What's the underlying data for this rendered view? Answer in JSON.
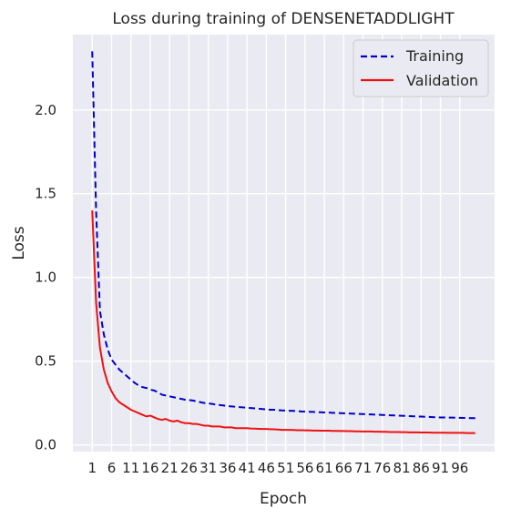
{
  "chart_data": {
    "type": "line",
    "title": "Loss during training of DENSENETADDLIGHT",
    "xlabel": "Epoch",
    "ylabel": "Loss",
    "xlim": [
      -4,
      105
    ],
    "ylim": [
      -0.04,
      2.45
    ],
    "grid": true,
    "legend_position": "top-right",
    "x_ticks": [
      1,
      6,
      11,
      16,
      21,
      26,
      31,
      36,
      41,
      46,
      51,
      56,
      61,
      66,
      71,
      76,
      81,
      86,
      91,
      96
    ],
    "x_tick_labels": [
      "1",
      "6",
      "11",
      "16",
      "21",
      "26",
      "31",
      "36",
      "41",
      "46",
      "51",
      "56",
      "61",
      "66",
      "71",
      "76",
      "81",
      "86",
      "91",
      "96"
    ],
    "y_ticks": [
      0.0,
      0.5,
      1.0,
      1.5,
      2.0
    ],
    "y_tick_labels": [
      "0.0",
      "0.5",
      "1.0",
      "1.5",
      "2.0"
    ],
    "series": [
      {
        "name": "Training",
        "color": "#0000cc",
        "style": "dashed",
        "x": [
          1,
          2,
          3,
          4,
          5,
          6,
          7,
          8,
          9,
          10,
          11,
          12,
          13,
          14,
          15,
          16,
          17,
          18,
          19,
          20,
          21,
          22,
          23,
          24,
          25,
          26,
          27,
          28,
          29,
          30,
          31,
          32,
          33,
          34,
          35,
          36,
          37,
          38,
          39,
          40,
          41,
          42,
          43,
          44,
          45,
          46,
          47,
          48,
          49,
          50,
          51,
          52,
          53,
          54,
          55,
          56,
          57,
          58,
          59,
          60,
          61,
          62,
          63,
          64,
          65,
          66,
          67,
          68,
          69,
          70,
          71,
          72,
          73,
          74,
          75,
          76,
          77,
          78,
          79,
          80,
          81,
          82,
          83,
          84,
          85,
          86,
          87,
          88,
          89,
          90,
          91,
          92,
          93,
          94,
          95,
          96,
          97,
          98,
          99,
          100
        ],
        "values": [
          2.35,
          1.4,
          0.8,
          0.66,
          0.57,
          0.51,
          0.48,
          0.45,
          0.43,
          0.41,
          0.39,
          0.37,
          0.355,
          0.345,
          0.34,
          0.33,
          0.325,
          0.315,
          0.3,
          0.295,
          0.29,
          0.285,
          0.28,
          0.275,
          0.27,
          0.268,
          0.265,
          0.26,
          0.255,
          0.25,
          0.248,
          0.245,
          0.24,
          0.238,
          0.235,
          0.232,
          0.23,
          0.228,
          0.226,
          0.224,
          0.222,
          0.22,
          0.218,
          0.216,
          0.214,
          0.212,
          0.21,
          0.21,
          0.208,
          0.206,
          0.205,
          0.204,
          0.203,
          0.202,
          0.2,
          0.199,
          0.198,
          0.197,
          0.196,
          0.195,
          0.194,
          0.193,
          0.192,
          0.191,
          0.19,
          0.189,
          0.188,
          0.187,
          0.186,
          0.185,
          0.184,
          0.183,
          0.182,
          0.181,
          0.18,
          0.179,
          0.178,
          0.177,
          0.176,
          0.175,
          0.174,
          0.173,
          0.172,
          0.171,
          0.17,
          0.169,
          0.168,
          0.167,
          0.166,
          0.165,
          0.164,
          0.164,
          0.163,
          0.163,
          0.162,
          0.162,
          0.161,
          0.161,
          0.16,
          0.16
        ]
      },
      {
        "name": "Validation",
        "color": "#ee1111",
        "style": "solid",
        "x": [
          1,
          2,
          3,
          4,
          5,
          6,
          7,
          8,
          9,
          10,
          11,
          12,
          13,
          14,
          15,
          16,
          17,
          18,
          19,
          20,
          21,
          22,
          23,
          24,
          25,
          26,
          27,
          28,
          29,
          30,
          31,
          32,
          33,
          34,
          35,
          36,
          37,
          38,
          39,
          40,
          41,
          42,
          43,
          44,
          45,
          46,
          47,
          48,
          49,
          50,
          51,
          52,
          53,
          54,
          55,
          56,
          57,
          58,
          59,
          60,
          61,
          62,
          63,
          64,
          65,
          66,
          67,
          68,
          69,
          70,
          71,
          72,
          73,
          74,
          75,
          76,
          77,
          78,
          79,
          80,
          81,
          82,
          83,
          84,
          85,
          86,
          87,
          88,
          89,
          90,
          91,
          92,
          93,
          94,
          95,
          96,
          97,
          98,
          99,
          100
        ],
        "values": [
          1.4,
          0.85,
          0.58,
          0.45,
          0.37,
          0.32,
          0.28,
          0.255,
          0.24,
          0.225,
          0.21,
          0.2,
          0.19,
          0.18,
          0.17,
          0.175,
          0.165,
          0.155,
          0.15,
          0.155,
          0.145,
          0.14,
          0.145,
          0.135,
          0.13,
          0.13,
          0.125,
          0.125,
          0.12,
          0.115,
          0.115,
          0.11,
          0.11,
          0.11,
          0.105,
          0.105,
          0.105,
          0.1,
          0.1,
          0.1,
          0.1,
          0.098,
          0.097,
          0.096,
          0.095,
          0.095,
          0.094,
          0.093,
          0.092,
          0.09,
          0.09,
          0.09,
          0.089,
          0.088,
          0.088,
          0.087,
          0.087,
          0.086,
          0.086,
          0.085,
          0.085,
          0.085,
          0.084,
          0.084,
          0.083,
          0.083,
          0.082,
          0.082,
          0.081,
          0.081,
          0.08,
          0.08,
          0.08,
          0.079,
          0.079,
          0.078,
          0.078,
          0.077,
          0.077,
          0.077,
          0.076,
          0.076,
          0.075,
          0.075,
          0.075,
          0.074,
          0.074,
          0.074,
          0.073,
          0.073,
          0.073,
          0.073,
          0.072,
          0.072,
          0.072,
          0.072,
          0.072,
          0.071,
          0.071,
          0.071
        ]
      }
    ]
  }
}
